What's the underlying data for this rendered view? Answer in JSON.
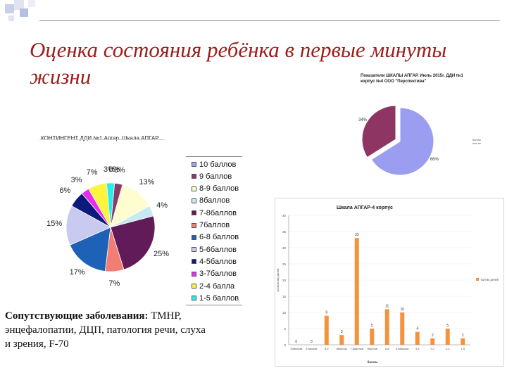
{
  "slide": {
    "title": "Оценка состояния ребёнка в первые минуты жизни",
    "bottom_label": "Сопутствующие заболевания:",
    "bottom_rest_1": " ТМНР,",
    "bottom_line_2": "энцефалопатии, ДЦП, патология речи, слуха",
    "bottom_line_3": "и зрения, F-70"
  },
  "chart_data": [
    {
      "type": "pie",
      "title": "КОНТИНГЕНТ ДДИ №1 Апгар. Шкала АПГАР",
      "categories": [
        "10 баллов",
        "9 баллов",
        "8-9 баллов",
        "8баллов",
        "7-8баллов",
        "7баллов",
        "6-8 баллов",
        "5-6баллов",
        "4-5баллов",
        "3-7баллов",
        "2-4 балла",
        "1-5 баллов"
      ],
      "values": [
        0,
        3,
        13,
        4,
        25,
        7,
        17,
        15,
        6,
        3,
        7,
        3
      ],
      "data_labels": [
        "0%",
        "3%",
        "13%",
        "4%",
        "25%",
        "7%",
        "17%",
        "15%",
        "6%",
        "3%",
        "7%",
        "3%"
      ],
      "colors": [
        "#9aa8e6",
        "#8b3a68",
        "#fdfdd0",
        "#c6eaf0",
        "#611b58",
        "#f27d74",
        "#1e62b8",
        "#cac9f0",
        "#0b1a7c",
        "#e82ee8",
        "#fdf53d",
        "#29eded"
      ],
      "legend_position": "right"
    },
    {
      "type": "pie",
      "title": "Показатели ШКАЛЫ АПГАР. Июль 2015г. ДДИ №1 корпус №4 ООО \"Перспектива\"",
      "values": [
        34,
        66
      ],
      "data_labels": [
        "34%",
        "66%"
      ],
      "colors": [
        "#8e3563",
        "#9b9ef0"
      ],
      "legend": [
        "баллы",
        "кол-во"
      ]
    },
    {
      "type": "bar",
      "title": "Шкала АПГАР-4 корпус",
      "categories": [
        "10баллов",
        "9 баллов",
        "8-9",
        "8баллов",
        "7-8баллов",
        "7баллов",
        "6-8",
        "5-6баллов",
        "4-5",
        "3-7",
        "2-4",
        "1-5"
      ],
      "values": [
        0,
        0,
        9,
        3,
        33,
        5,
        11,
        10,
        4,
        2,
        5,
        2
      ],
      "ylim": [
        0,
        40
      ],
      "yticks": [
        0,
        5,
        10,
        15,
        20,
        25,
        30,
        35,
        40
      ],
      "color": "#f5923e",
      "xlabel": "баллы",
      "ylabel": "количество детей",
      "legend": "кол-во детей",
      "legend_position": "right"
    }
  ]
}
